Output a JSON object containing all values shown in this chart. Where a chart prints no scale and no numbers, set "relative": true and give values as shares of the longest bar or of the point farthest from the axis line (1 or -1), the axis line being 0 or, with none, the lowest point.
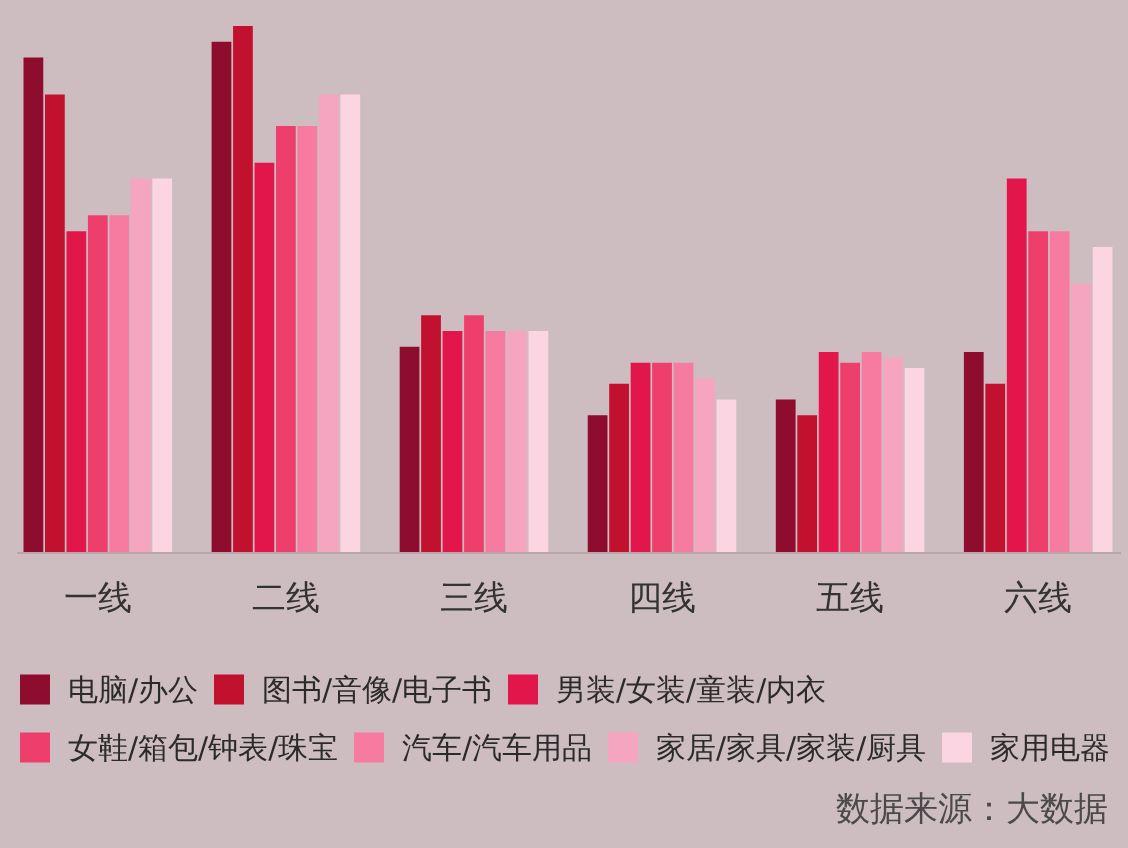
{
  "chart_data": {
    "type": "bar",
    "relative": true,
    "legend": "bottom",
    "categories": [
      "一线",
      "二线",
      "三线",
      "四线",
      "五线",
      "六线"
    ],
    "series": [
      {
        "name": "电脑/办公",
        "color": "#8e0d2e",
        "values": [
          0.94,
          0.97,
          0.39,
          0.26,
          0.29,
          0.38
        ]
      },
      {
        "name": "图书/音像/电子书",
        "color": "#c2102f",
        "values": [
          0.87,
          1,
          0.45,
          0.32,
          0.26,
          0.32
        ]
      },
      {
        "name": "男装/女装/童装/内衣",
        "color": "#e3164c",
        "values": [
          0.61,
          0.74,
          0.42,
          0.36,
          0.38,
          0.71
        ]
      },
      {
        "name": "女鞋/箱包/钟表/珠宝",
        "color": "#ee3f6c",
        "values": [
          0.64,
          0.81,
          0.45,
          0.36,
          0.36,
          0.61
        ]
      },
      {
        "name": "汽车/汽车用品",
        "color": "#f77ba0",
        "values": [
          0.64,
          0.81,
          0.42,
          0.36,
          0.38,
          0.61
        ]
      },
      {
        "name": "家居/家具/家装/厨具",
        "color": "#f6a5c0",
        "values": [
          0.71,
          0.87,
          0.42,
          0.33,
          0.37,
          0.51
        ]
      },
      {
        "name": "家用电器",
        "color": "#fcd5e3",
        "values": [
          0.71,
          0.87,
          0.42,
          0.29,
          0.35,
          0.58
        ]
      }
    ],
    "annotations": [
      "数据来源：大数据"
    ]
  }
}
